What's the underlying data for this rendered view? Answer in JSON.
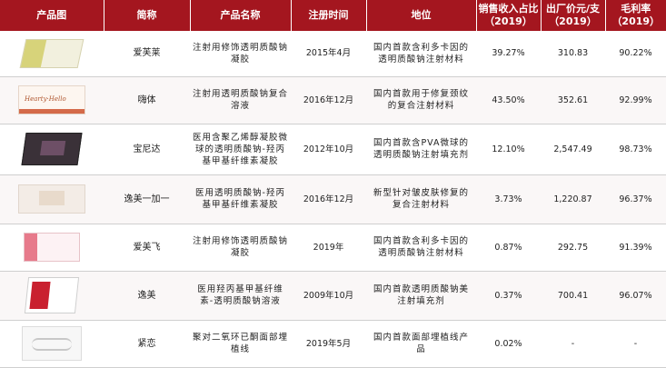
{
  "header": {
    "image": "产品图",
    "short": "简称",
    "name": "产品名称",
    "reg": "注册时间",
    "pos": "地位",
    "sales": "销售收入占比（2019）",
    "price": "出厂价元/支（2019）",
    "margin": "毛利率（2019）"
  },
  "rows": [
    {
      "short": "爱芙莱",
      "name": "注射用修饰透明质酸钠凝胶",
      "reg": "2015年4月",
      "pos": "国内首款含利多卡因的透明质酸钠注射材料",
      "sales": "39.27%",
      "price": "310.83",
      "margin": "90.22%",
      "image_icon": "product-box-icon"
    },
    {
      "short": "嗨体",
      "name": "注射用透明质酸钠复合溶液",
      "reg": "2016年12月",
      "pos": "国内首款用于修复颈纹的复合注射材料",
      "sales": "43.50%",
      "price": "352.61",
      "margin": "92.99%",
      "image_icon": "product-box-icon"
    },
    {
      "short": "宝尼达",
      "name": "医用含聚乙烯醇凝胶微球的透明质酸钠-羟丙基甲基纤维素凝胶",
      "reg": "2012年10月",
      "pos": "国内首款含PVA微球的透明质酸钠注射填充剂",
      "sales": "12.10%",
      "price": "2,547.49",
      "margin": "98.73%",
      "image_icon": "product-box-icon"
    },
    {
      "short": "逸美一加一",
      "name": "医用透明质酸钠-羟丙基甲基纤维素凝胶",
      "reg": "2016年12月",
      "pos": "新型针对皱皮肤修复的复合注射材料",
      "sales": "3.73%",
      "price": "1,220.87",
      "margin": "96.37%",
      "image_icon": "product-box-icon"
    },
    {
      "short": "爱美飞",
      "name": "注射用修饰透明质酸钠凝胶",
      "reg": "2019年",
      "pos": "国内首款含利多卡因的透明质酸钠注射材料",
      "sales": "0.87%",
      "price": "292.75",
      "margin": "91.39%",
      "image_icon": "product-box-icon"
    },
    {
      "short": "逸美",
      "name": "医用羟丙基甲基纤维素-透明质酸钠溶液",
      "reg": "2009年10月",
      "pos": "国内首款透明质酸钠美注射填充剂",
      "sales": "0.37%",
      "price": "700.41",
      "margin": "96.07%",
      "image_icon": "product-box-icon"
    },
    {
      "short": "紧恋",
      "name": "聚对二氧环已酮面部埋植线",
      "reg": "2019年5月",
      "pos": "国内首款面部埋植线产品",
      "sales": "0.02%",
      "price": "-",
      "margin": "-",
      "image_icon": "product-box-icon"
    }
  ],
  "pkg_labels": {
    "row2": "Hearty·Hello"
  }
}
